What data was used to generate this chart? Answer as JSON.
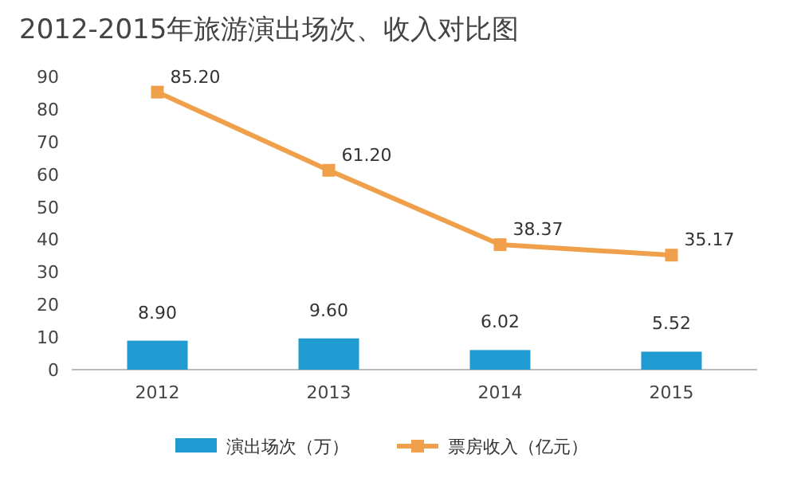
{
  "chart_data": {
    "type": "bar",
    "title": "2012-2015年旅游演出场次、收入对比图",
    "categories": [
      "2012",
      "2013",
      "2014",
      "2015"
    ],
    "series": [
      {
        "name": "演出场次（万）",
        "color": "#1f9bd1",
        "values": [
          8.9,
          9.6,
          6.02,
          5.52
        ],
        "value_labels": [
          "8.90",
          "9.60",
          "6.02",
          "5.52"
        ]
      },
      {
        "name": "票房收入（亿元）",
        "type": "line",
        "color": "#f0a04b",
        "values": [
          85.2,
          61.2,
          38.37,
          35.17
        ],
        "value_labels": [
          "85.20",
          "61.20",
          "38.37",
          "35.17"
        ]
      }
    ],
    "ylim": [
      0,
      90
    ],
    "yticks": [
      0,
      10,
      20,
      30,
      40,
      50,
      60,
      70,
      80,
      90
    ],
    "legend": "bottom",
    "marker": "square"
  }
}
